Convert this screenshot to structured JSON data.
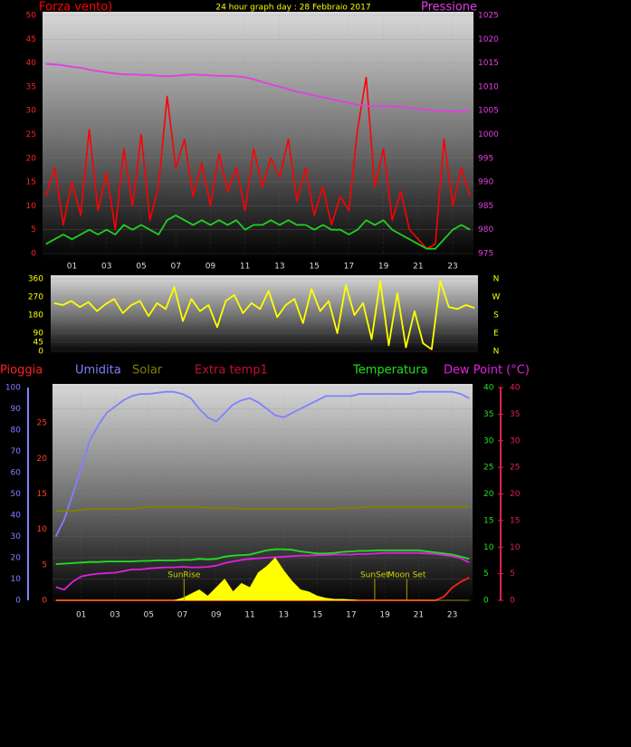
{
  "chart_data": [
    {
      "type": "line",
      "title": "24 hour graph day : 28 Febbraio 2017",
      "title_color": "#ffff00",
      "xlim": [
        -0.7,
        24.2
      ],
      "xticks": [
        {
          "value": 1,
          "label": "01"
        },
        {
          "value": 3,
          "label": "03"
        },
        {
          "value": 5,
          "label": "05"
        },
        {
          "value": 7,
          "label": "07"
        },
        {
          "value": 9,
          "label": "09"
        },
        {
          "value": 11,
          "label": "11"
        },
        {
          "value": 13,
          "label": "13"
        },
        {
          "value": 15,
          "label": "15"
        },
        {
          "value": 17,
          "label": "17"
        },
        {
          "value": 19,
          "label": "19"
        },
        {
          "value": 21,
          "label": "21"
        },
        {
          "value": 23,
          "label": "23"
        }
      ],
      "ylim": [
        0,
        50
      ],
      "yticks": [
        0,
        5,
        10,
        15,
        20,
        25,
        30,
        35,
        40,
        45,
        50
      ],
      "y2lim": [
        975,
        1025
      ],
      "y2ticks": [
        975,
        980,
        985,
        990,
        995,
        1000,
        1005,
        1010,
        1015,
        1020,
        1025
      ],
      "axis_colors": {
        "y": "#ff2020",
        "y2": "#e040e0"
      },
      "grid": true,
      "x": [
        -0.5,
        0,
        0.5,
        1,
        1.5,
        2,
        2.5,
        3,
        3.5,
        4,
        4.5,
        5,
        5.5,
        6,
        6.5,
        7,
        7.5,
        8,
        8.5,
        9,
        9.5,
        10,
        10.5,
        11,
        11.5,
        12,
        12.5,
        13,
        13.5,
        14,
        14.5,
        15,
        15.5,
        16,
        16.5,
        17,
        17.5,
        18,
        18.5,
        19,
        19.5,
        20,
        20.5,
        21,
        21.5,
        22,
        22.5,
        23,
        23.5,
        24
      ],
      "series": [
        {
          "name": "Forza vento)",
          "color": "#ff0000",
          "axis": "y",
          "values": [
            12,
            18,
            6,
            15,
            8,
            26,
            9,
            17,
            5,
            22,
            10,
            25,
            7,
            14,
            33,
            18,
            24,
            12,
            19,
            10,
            21,
            13,
            18,
            9,
            22,
            14,
            20,
            16,
            24,
            11,
            18,
            8,
            14,
            6,
            12,
            9,
            26,
            37,
            14,
            22,
            7,
            13,
            5,
            3,
            1,
            2,
            24,
            10,
            18,
            12
          ]
        },
        {
          "color": "#20d020",
          "axis": "y",
          "values": [
            2,
            3,
            4,
            3,
            4,
            5,
            4,
            5,
            4,
            6,
            5,
            6,
            5,
            4,
            7,
            8,
            7,
            6,
            7,
            6,
            7,
            6,
            7,
            5,
            6,
            6,
            7,
            6,
            7,
            6,
            6,
            5,
            6,
            5,
            5,
            4,
            5,
            7,
            6,
            7,
            5,
            4,
            3,
            2,
            1,
            1,
            3,
            5,
            6,
            5
          ]
        },
        {
          "name": "Pressione",
          "color": "#e040e0",
          "axis": "y2",
          "values": [
            1014.8,
            1014.7,
            1014.5,
            1014.2,
            1014,
            1013.6,
            1013.3,
            1013,
            1012.8,
            1012.6,
            1012.6,
            1012.5,
            1012.5,
            1012.3,
            1012.2,
            1012.3,
            1012.5,
            1012.6,
            1012.5,
            1012.4,
            1012.3,
            1012.3,
            1012.2,
            1012,
            1011.6,
            1011,
            1010.5,
            1010,
            1009.5,
            1009,
            1008.6,
            1008.2,
            1007.8,
            1007.4,
            1007,
            1006.6,
            1006.2,
            1006,
            1005.9,
            1005.9,
            1005.9,
            1005.8,
            1005.6,
            1005.4,
            1005.2,
            1005,
            1004.9,
            1004.8,
            1004.9,
            1005
          ]
        }
      ]
    },
    {
      "type": "line",
      "xlim": [
        -0.7,
        24.2
      ],
      "ylim": [
        0,
        360
      ],
      "yticks": [
        0,
        45,
        90,
        180,
        270,
        360
      ],
      "y2lim": [
        0,
        360
      ],
      "y2ticks": [
        {
          "value": 360,
          "label": "N"
        },
        {
          "value": 270,
          "label": "W"
        },
        {
          "value": 180,
          "label": "S"
        },
        {
          "value": 90,
          "label": "E"
        },
        {
          "value": 0,
          "label": "N"
        }
      ],
      "axis_colors": {
        "y": "#ffff00",
        "y2": "#ffff00"
      },
      "grid": true,
      "x": [
        -0.5,
        0,
        0.5,
        1,
        1.5,
        2,
        2.5,
        3,
        3.5,
        4,
        4.5,
        5,
        5.5,
        6,
        6.5,
        7,
        7.5,
        8,
        8.5,
        9,
        9.5,
        10,
        10.5,
        11,
        11.5,
        12,
        12.5,
        13,
        13.5,
        14,
        14.5,
        15,
        15.5,
        16,
        16.5,
        17,
        17.5,
        18,
        18.5,
        19,
        19.5,
        20,
        20.5,
        21,
        21.5,
        22,
        22.5,
        23,
        23.5,
        24
      ],
      "series": [
        {
          "color": "#ffff00",
          "axis": "y",
          "values": [
            240,
            230,
            250,
            220,
            245,
            200,
            235,
            260,
            190,
            230,
            250,
            175,
            240,
            210,
            320,
            150,
            260,
            200,
            230,
            120,
            250,
            280,
            190,
            240,
            210,
            300,
            170,
            230,
            260,
            140,
            310,
            200,
            250,
            90,
            330,
            180,
            240,
            60,
            350,
            30,
            290,
            20,
            200,
            40,
            10,
            350,
            220,
            210,
            230,
            215
          ]
        }
      ]
    },
    {
      "type": "line",
      "xlim": [
        -0.7,
        24.2
      ],
      "xticks": [
        {
          "value": 1,
          "label": "01"
        },
        {
          "value": 3,
          "label": "03"
        },
        {
          "value": 5,
          "label": "05"
        },
        {
          "value": 7,
          "label": "07"
        },
        {
          "value": 9,
          "label": "09"
        },
        {
          "value": 11,
          "label": "11"
        },
        {
          "value": 13,
          "label": "13"
        },
        {
          "value": 15,
          "label": "15"
        },
        {
          "value": 17,
          "label": "17"
        },
        {
          "value": 19,
          "label": "19"
        },
        {
          "value": 21,
          "label": "21"
        },
        {
          "value": 23,
          "label": "23"
        }
      ],
      "ylim": [
        0,
        100
      ],
      "yticks": [
        0,
        10,
        20,
        30,
        40,
        50,
        60,
        70,
        80,
        90,
        100
      ],
      "y2lim": [
        0,
        30
      ],
      "y2ticks": [
        0,
        5,
        10,
        15,
        20,
        25
      ],
      "y3lim": [
        0,
        40
      ],
      "y3ticks": [
        0,
        5,
        10,
        15,
        20,
        25,
        30,
        35,
        40
      ],
      "y4lim": [
        0,
        40
      ],
      "y4ticks": [
        0,
        5,
        10,
        15,
        20,
        25,
        30,
        35,
        40
      ],
      "axis_colors": {
        "y": "#8080ff",
        "y2": "#ff4020",
        "y3": "#20e020",
        "y4": "#e02050"
      },
      "grid": true,
      "x": [
        -0.5,
        0,
        0.5,
        1,
        1.5,
        2,
        2.5,
        3,
        3.5,
        4,
        4.5,
        5,
        5.5,
        6,
        6.5,
        7,
        7.5,
        8,
        8.5,
        9,
        9.5,
        10,
        10.5,
        11,
        11.5,
        12,
        12.5,
        13,
        13.5,
        14,
        14.5,
        15,
        15.5,
        16,
        16.5,
        17,
        17.5,
        18,
        18.5,
        19,
        19.5,
        20,
        20.5,
        21,
        21.5,
        22,
        22.5,
        23,
        23.5,
        24
      ],
      "series": [
        {
          "name": "Pioggia",
          "color": "#ff2020",
          "axis": "y2",
          "values": [
            0,
            0,
            0,
            0,
            0,
            0,
            0,
            0,
            0,
            0,
            0,
            0,
            0,
            0,
            0,
            0,
            0,
            0,
            0,
            0,
            0,
            0,
            0,
            0,
            0,
            0,
            0,
            0,
            0,
            0,
            0,
            0,
            0,
            0,
            0,
            0,
            0,
            0,
            0,
            0,
            0,
            0,
            0,
            0,
            0,
            0,
            0.5,
            1.8,
            2.6,
            3.2
          ]
        },
        {
          "name": "Umidita",
          "color": "#8080ff",
          "axis": "y",
          "values": [
            30,
            38,
            50,
            62,
            75,
            82,
            88,
            91,
            94,
            96,
            97,
            97,
            97.5,
            98,
            98,
            97,
            95,
            90,
            86,
            84,
            88,
            92,
            94,
            95,
            93,
            90,
            87,
            86,
            88,
            90,
            92,
            94,
            96,
            96,
            96,
            96,
            97,
            97,
            97,
            97,
            97,
            97,
            97,
            98,
            98,
            98,
            98,
            98,
            97,
            95
          ]
        },
        {
          "name": "Solar",
          "color": "#808000",
          "axis": "y",
          "values": [
            42,
            42,
            42,
            42.5,
            43,
            43,
            43,
            43,
            43,
            43,
            43.5,
            44,
            44,
            44,
            44,
            44,
            44,
            44,
            43.5,
            43.5,
            43.5,
            43.5,
            43,
            43,
            43,
            43,
            43,
            43,
            43,
            43,
            43,
            43,
            43,
            43,
            43.5,
            43.5,
            43.5,
            44,
            44,
            44,
            44,
            44,
            44,
            44,
            44,
            44,
            44,
            44,
            44,
            44
          ]
        },
        {
          "name": "Temperatura",
          "color": "#20e020",
          "axis": "y3",
          "values": [
            6.8,
            6.9,
            7,
            7.1,
            7.2,
            7.2,
            7.3,
            7.3,
            7.3,
            7.3,
            7.4,
            7.4,
            7.5,
            7.5,
            7.5,
            7.6,
            7.6,
            7.8,
            7.7,
            7.8,
            8.2,
            8.4,
            8.5,
            8.6,
            9,
            9.4,
            9.6,
            9.6,
            9.5,
            9.2,
            9,
            8.8,
            8.8,
            8.9,
            9.1,
            9.2,
            9.3,
            9.3,
            9.4,
            9.4,
            9.4,
            9.4,
            9.4,
            9.4,
            9.2,
            9,
            8.8,
            8.6,
            8.2,
            7.8
          ]
        },
        {
          "name": "Dew Point (°C)",
          "color": "#e020e0",
          "axis": "y4",
          "values": [
            2.5,
            2,
            3.5,
            4.5,
            4.8,
            5,
            5.1,
            5.2,
            5.5,
            5.8,
            5.8,
            6,
            6.1,
            6.2,
            6.2,
            6.3,
            6.2,
            6.2,
            6.3,
            6.5,
            7,
            7.3,
            7.6,
            7.8,
            7.9,
            8,
            8.1,
            8.2,
            8.3,
            8.4,
            8.4,
            8.5,
            8.5,
            8.6,
            8.6,
            8.6,
            8.7,
            8.7,
            8.8,
            8.9,
            8.9,
            8.9,
            8.9,
            8.9,
            8.8,
            8.7,
            8.5,
            8.3,
            7.9,
            7.1
          ]
        },
        {
          "color": "#ffff00",
          "axis": "y",
          "fill": true,
          "values": [
            0,
            0,
            0,
            0,
            0,
            0,
            0,
            0,
            0,
            0,
            0,
            0,
            0,
            0,
            0,
            1,
            3,
            5,
            2,
            6,
            10,
            4,
            8,
            6,
            13,
            16,
            20,
            14,
            9,
            5,
            4,
            2,
            1,
            0.5,
            0.5,
            0.3,
            0,
            0,
            0,
            0,
            0,
            0,
            0,
            0,
            0,
            0,
            0,
            0,
            0,
            0
          ]
        }
      ],
      "extra_legend": [
        {
          "name": "Extra temp1",
          "color": "#c01030"
        }
      ],
      "annotations": [
        {
          "text": "SunRise",
          "x": 7.1
        },
        {
          "text": "SunSet",
          "x": 18.4
        },
        {
          "text": "Moon Set",
          "x": 20.3
        }
      ]
    }
  ]
}
